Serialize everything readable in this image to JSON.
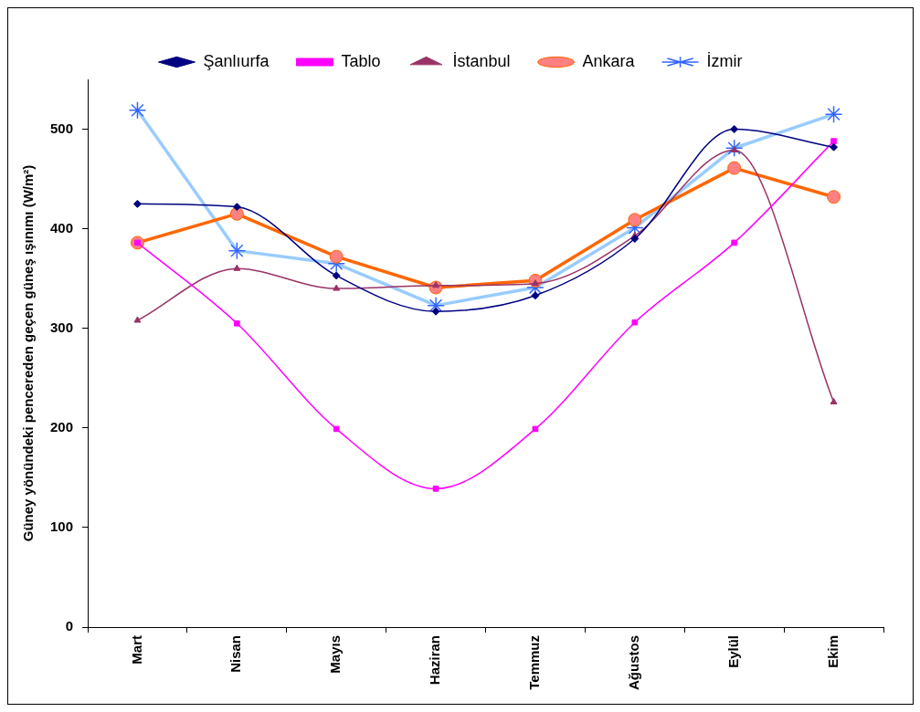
{
  "chart_data": {
    "type": "line",
    "ylabel": "Güney yönündeki pencereden geçen güneş ışınımı (W/m²)",
    "categories": [
      "Mart",
      "Nisan",
      "Mayıs",
      "Haziran",
      "Temmuz",
      "Ağustos",
      "Eylül",
      "Ekim"
    ],
    "series": [
      {
        "name": "Şanlıurfa",
        "color": "#000080",
        "marker": "diamond",
        "values": [
          425,
          422,
          353,
          317,
          333,
          390,
          500,
          482
        ]
      },
      {
        "name": "Tablo",
        "color": "#ff00ff",
        "marker": "square",
        "values": [
          386,
          305,
          199,
          139,
          199,
          306,
          386,
          488
        ]
      },
      {
        "name": "İstanbul",
        "color": "#993366",
        "marker": "triangle",
        "values": [
          308,
          360,
          340,
          343,
          345,
          393,
          479,
          226
        ]
      },
      {
        "name": "Ankara",
        "color": "#ff6600",
        "marker": "circle",
        "values": [
          386,
          415,
          372,
          341,
          348,
          409,
          461,
          432
        ]
      },
      {
        "name": "İzmir",
        "color": "#99ccff",
        "marker": "cross",
        "values": [
          519,
          378,
          365,
          323,
          341,
          401,
          481,
          515
        ]
      }
    ],
    "ylim": [
      0,
      550
    ],
    "yticks": [
      0,
      100,
      200,
      300,
      400,
      500
    ],
    "grid": false,
    "legend": "top",
    "line_style": "solid"
  }
}
